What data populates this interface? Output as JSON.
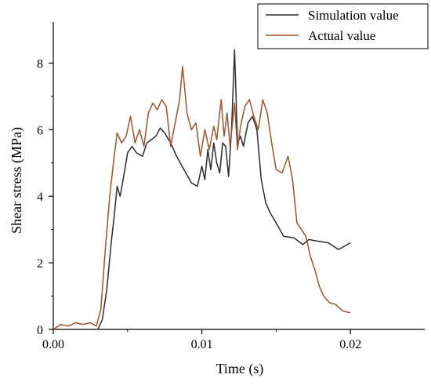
{
  "chart_data": {
    "type": "line",
    "xlabel": "Time (s)",
    "ylabel": "Shear stress (MPa)",
    "xlim": [
      0,
      0.025
    ],
    "ylim": [
      0,
      9
    ],
    "xticks": [
      0,
      0.01,
      0.02
    ],
    "xtick_labels": [
      "0.00",
      "0.01",
      "0.02"
    ],
    "yticks": [
      0,
      2,
      4,
      6,
      8
    ],
    "ytick_labels": [
      "0",
      "2",
      "4",
      "6",
      "8"
    ],
    "grid": false,
    "legend_position": "top-right",
    "series": [
      {
        "name": "Simulation value",
        "color": "#2b2b2b",
        "points": [
          [
            0.003,
            0.0
          ],
          [
            0.0033,
            0.3
          ],
          [
            0.0036,
            1.2
          ],
          [
            0.0039,
            2.6
          ],
          [
            0.0041,
            3.4
          ],
          [
            0.0043,
            4.3
          ],
          [
            0.0045,
            4.0
          ],
          [
            0.0047,
            4.5
          ],
          [
            0.005,
            5.3
          ],
          [
            0.0053,
            5.5
          ],
          [
            0.0056,
            5.3
          ],
          [
            0.006,
            5.2
          ],
          [
            0.0063,
            5.6
          ],
          [
            0.0066,
            5.7
          ],
          [
            0.0069,
            5.8
          ],
          [
            0.0072,
            6.05
          ],
          [
            0.0075,
            5.9
          ],
          [
            0.0079,
            5.6
          ],
          [
            0.0083,
            5.2
          ],
          [
            0.0088,
            4.8
          ],
          [
            0.0093,
            4.4
          ],
          [
            0.0097,
            4.3
          ],
          [
            0.01,
            4.9
          ],
          [
            0.0102,
            4.5
          ],
          [
            0.0104,
            5.4
          ],
          [
            0.0106,
            4.8
          ],
          [
            0.0108,
            5.6
          ],
          [
            0.011,
            5.0
          ],
          [
            0.0112,
            4.7
          ],
          [
            0.0114,
            5.6
          ],
          [
            0.0116,
            5.5
          ],
          [
            0.0118,
            4.6
          ],
          [
            0.012,
            6.0
          ],
          [
            0.0122,
            8.4
          ],
          [
            0.0124,
            5.6
          ],
          [
            0.0126,
            5.8
          ],
          [
            0.0128,
            5.5
          ],
          [
            0.0131,
            6.2
          ],
          [
            0.0134,
            6.4
          ],
          [
            0.0137,
            6.0
          ],
          [
            0.014,
            4.5
          ],
          [
            0.0143,
            3.8
          ],
          [
            0.0146,
            3.5
          ],
          [
            0.015,
            3.2
          ],
          [
            0.0155,
            2.8
          ],
          [
            0.0162,
            2.75
          ],
          [
            0.0168,
            2.55
          ],
          [
            0.0172,
            2.7
          ],
          [
            0.0178,
            2.65
          ],
          [
            0.0185,
            2.6
          ],
          [
            0.0192,
            2.4
          ],
          [
            0.02,
            2.6
          ]
        ]
      },
      {
        "name": "Actual value",
        "color": "#a0522d",
        "points": [
          [
            0.0,
            0.0
          ],
          [
            0.0005,
            0.15
          ],
          [
            0.001,
            0.1
          ],
          [
            0.0015,
            0.2
          ],
          [
            0.002,
            0.15
          ],
          [
            0.0025,
            0.2
          ],
          [
            0.0029,
            0.1
          ],
          [
            0.0032,
            0.6
          ],
          [
            0.0035,
            2.4
          ],
          [
            0.0038,
            4.0
          ],
          [
            0.0041,
            5.2
          ],
          [
            0.0043,
            5.9
          ],
          [
            0.0046,
            5.6
          ],
          [
            0.0049,
            5.8
          ],
          [
            0.0052,
            6.4
          ],
          [
            0.0055,
            5.6
          ],
          [
            0.0058,
            6.0
          ],
          [
            0.0061,
            5.5
          ],
          [
            0.0064,
            6.5
          ],
          [
            0.0067,
            6.8
          ],
          [
            0.007,
            6.6
          ],
          [
            0.0073,
            6.9
          ],
          [
            0.0076,
            6.7
          ],
          [
            0.0079,
            5.5
          ],
          [
            0.0082,
            6.2
          ],
          [
            0.0085,
            6.9
          ],
          [
            0.0087,
            7.9
          ],
          [
            0.009,
            6.5
          ],
          [
            0.0093,
            6.0
          ],
          [
            0.0096,
            6.2
          ],
          [
            0.0099,
            5.2
          ],
          [
            0.0102,
            6.0
          ],
          [
            0.0105,
            5.4
          ],
          [
            0.0108,
            6.1
          ],
          [
            0.011,
            5.7
          ],
          [
            0.0113,
            6.9
          ],
          [
            0.0115,
            5.8
          ],
          [
            0.0117,
            6.5
          ],
          [
            0.0119,
            5.5
          ],
          [
            0.0122,
            6.8
          ],
          [
            0.0124,
            5.4
          ],
          [
            0.0126,
            6.1
          ],
          [
            0.0129,
            6.7
          ],
          [
            0.0132,
            6.9
          ],
          [
            0.0135,
            6.4
          ],
          [
            0.0138,
            6.0
          ],
          [
            0.0141,
            6.9
          ],
          [
            0.0144,
            6.5
          ],
          [
            0.0147,
            5.6
          ],
          [
            0.015,
            4.8
          ],
          [
            0.0154,
            4.7
          ],
          [
            0.0158,
            5.2
          ],
          [
            0.0161,
            4.5
          ],
          [
            0.0164,
            3.2
          ],
          [
            0.0167,
            3.0
          ],
          [
            0.017,
            2.8
          ],
          [
            0.0173,
            2.2
          ],
          [
            0.0176,
            1.8
          ],
          [
            0.0179,
            1.3
          ],
          [
            0.0182,
            1.0
          ],
          [
            0.0186,
            0.8
          ],
          [
            0.019,
            0.75
          ],
          [
            0.0195,
            0.55
          ],
          [
            0.02,
            0.5
          ]
        ]
      }
    ]
  }
}
